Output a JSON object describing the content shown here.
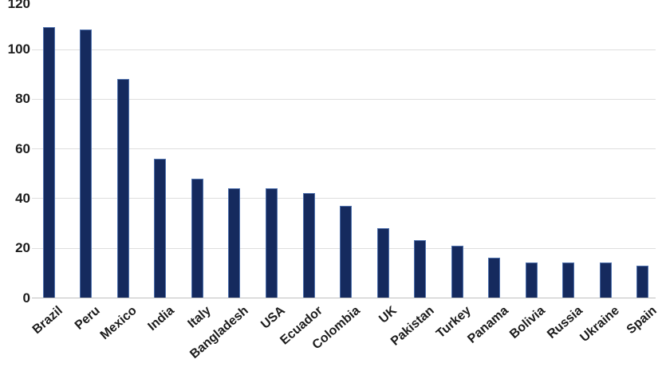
{
  "chart_data": {
    "type": "bar",
    "title": "",
    "xlabel": "",
    "ylabel": "",
    "categories": [
      "Brazil",
      "Peru",
      "Mexico",
      "India",
      "Italy",
      "Bangladesh",
      "USA",
      "Ecuador",
      "Colombia",
      "UK",
      "Pakistan",
      "Turkey",
      "Panama",
      "Bolivia",
      "Russia",
      "Ukraine",
      "Spain"
    ],
    "values": [
      109,
      108,
      88,
      56,
      48,
      44,
      44,
      42,
      37,
      28,
      23,
      21,
      16,
      14,
      14,
      14,
      13
    ],
    "ylim": [
      0,
      120
    ],
    "yticks": [
      0,
      20,
      40,
      60,
      80,
      100,
      120
    ],
    "grid": true,
    "legend_position": "none",
    "x_label_rotation_deg": 41,
    "colors": {
      "bar_fill": "#152a5e",
      "bar_border": "#4f71ad",
      "gridline": "#dedede",
      "axis_line": "#bfbfbf",
      "text": "#1c1c1c",
      "background": "#ffffff"
    }
  }
}
